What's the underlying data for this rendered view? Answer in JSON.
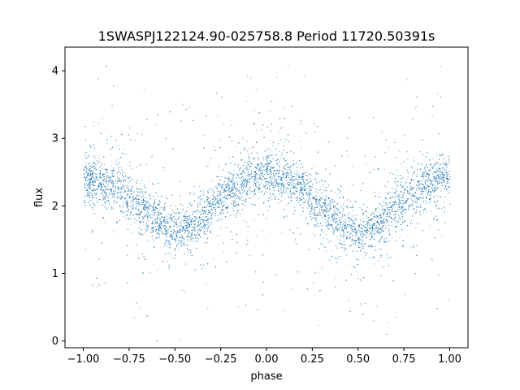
{
  "chart_data": {
    "type": "scatter",
    "title": "1SWASPJ122124.90-025758.8 Period 11720.50391s",
    "xlabel": "phase",
    "ylabel": "flux",
    "xlim": [
      -1.1,
      1.1
    ],
    "ylim": [
      -0.1,
      4.35
    ],
    "xticks": [
      -1.0,
      -0.75,
      -0.5,
      -0.25,
      0.0,
      0.25,
      0.5,
      0.75,
      1.0
    ],
    "xtick_labels": [
      "−1.00",
      "−0.75",
      "−0.50",
      "−0.25",
      "0.00",
      "0.25",
      "0.50",
      "0.75",
      "1.00"
    ],
    "yticks": [
      0,
      1,
      2,
      3,
      4
    ],
    "ytick_labels": [
      "0",
      "1",
      "2",
      "3",
      "4"
    ],
    "grid": false,
    "marker_color": "#1f77b4",
    "series": [
      {
        "x": [
          -1.0,
          -0.9,
          -0.8,
          -0.7,
          -0.6,
          -0.5,
          -0.4,
          -0.3,
          -0.2,
          -0.1,
          0.0,
          0.1,
          0.2,
          0.3,
          0.4,
          0.5,
          0.6,
          0.7,
          0.8,
          0.9,
          1.0
        ],
        "y": [
          2.4,
          2.36,
          2.25,
          2.05,
          1.8,
          1.58,
          1.72,
          2.0,
          2.25,
          2.4,
          2.45,
          2.4,
          2.25,
          2.0,
          1.75,
          1.55,
          1.72,
          1.98,
          2.2,
          2.35,
          2.42
        ]
      }
    ]
  }
}
